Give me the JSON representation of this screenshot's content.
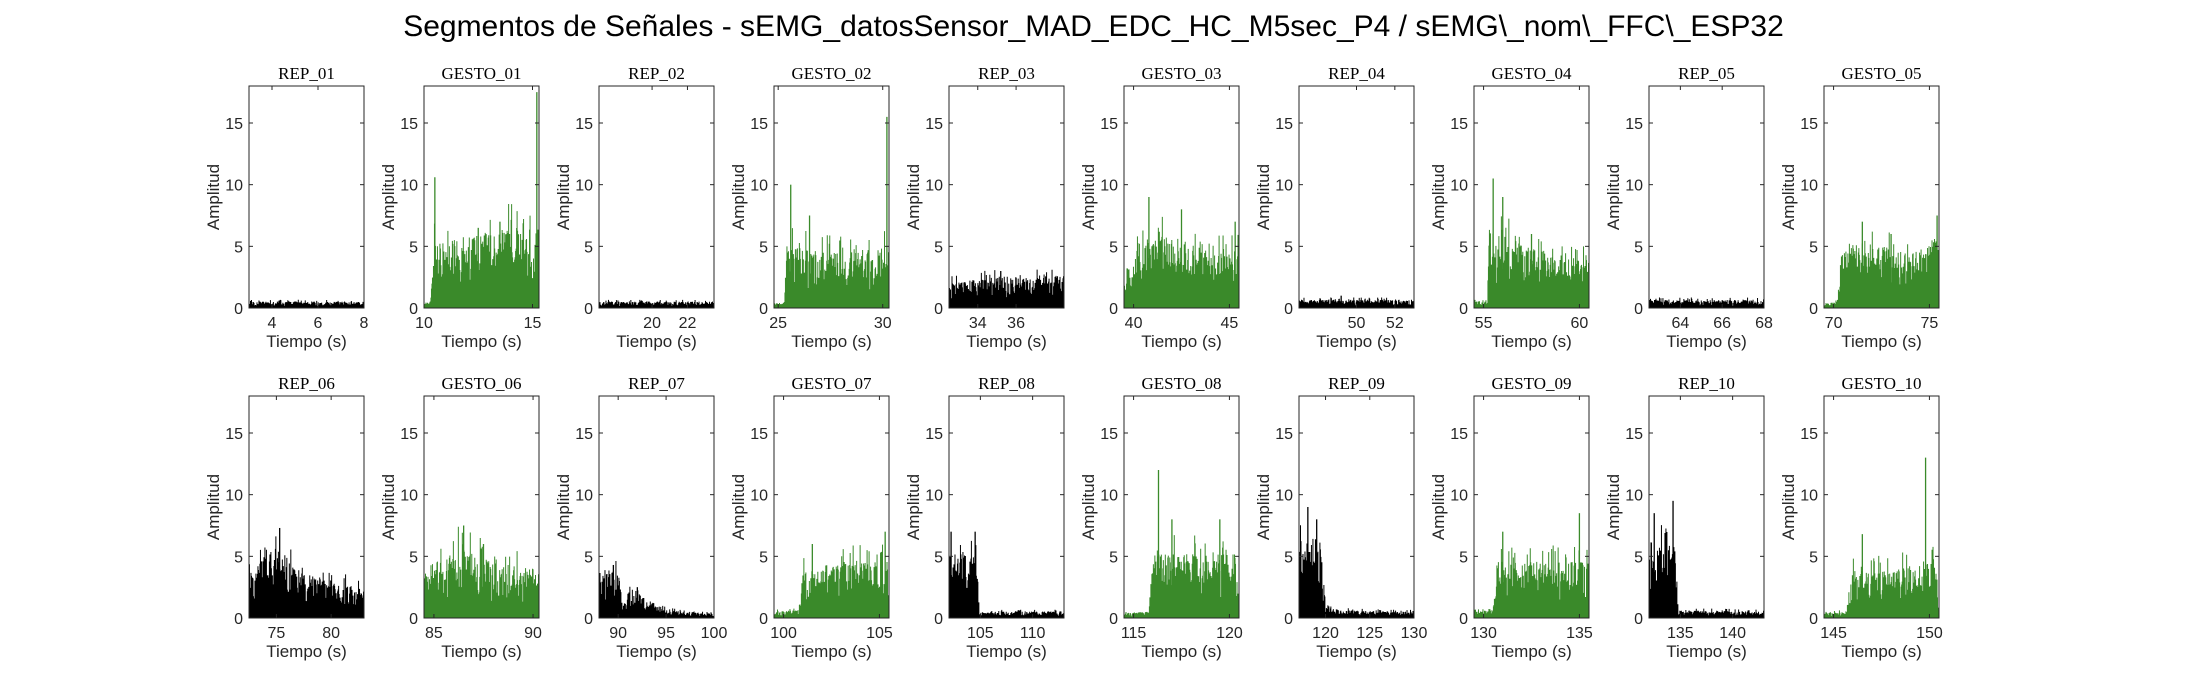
{
  "figure_title": "Segmentos de Señales - sEMG_datosSensor_MAD_EDC_HC_M5sec_P4 / sEMG\\_nom\\_FFC\\_ESP32",
  "colors": {
    "rep": "#000000",
    "gesto": "#3a8a2a",
    "axis": "#262626"
  },
  "chart_data": [
    {
      "type": "area",
      "title": "REP_01",
      "xlabel": "Tiempo (s)",
      "ylabel": "Amplitud",
      "xlim": [
        3,
        8
      ],
      "ylim": [
        0,
        18
      ],
      "xticks": [
        4,
        6,
        8
      ],
      "yticks": [
        0,
        5,
        10,
        15
      ],
      "color": "rep",
      "envelope": [
        {
          "x": 3,
          "y": 0.4
        },
        {
          "x": 8,
          "y": 0.4
        }
      ],
      "peaks": []
    },
    {
      "type": "area",
      "title": "GESTO_01",
      "xlabel": "Tiempo (s)",
      "ylabel": "Amplitud",
      "xlim": [
        10,
        15.3
      ],
      "ylim": [
        0,
        18
      ],
      "xticks": [
        10,
        15
      ],
      "yticks": [
        0,
        5,
        10,
        15
      ],
      "color": "gesto",
      "envelope": [
        {
          "x": 10,
          "y": 0.3
        },
        {
          "x": 10.3,
          "y": 0.5
        },
        {
          "x": 10.4,
          "y": 4
        },
        {
          "x": 12,
          "y": 4.5
        },
        {
          "x": 14,
          "y": 5
        },
        {
          "x": 15.3,
          "y": 5
        }
      ],
      "peaks": [
        {
          "x": 10.5,
          "y": 10.6
        },
        {
          "x": 12.5,
          "y": 6.5
        },
        {
          "x": 13.5,
          "y": 7
        },
        {
          "x": 15.2,
          "y": 17.5
        }
      ]
    },
    {
      "type": "area",
      "title": "REP_02",
      "xlabel": "Tiempo (s)",
      "ylabel": "Amplitud",
      "xlim": [
        17,
        23.5
      ],
      "ylim": [
        0,
        18
      ],
      "xticks": [
        20,
        22
      ],
      "yticks": [
        0,
        5,
        10,
        15
      ],
      "color": "rep",
      "envelope": [
        {
          "x": 17,
          "y": 0.4
        },
        {
          "x": 23.5,
          "y": 0.4
        }
      ],
      "peaks": []
    },
    {
      "type": "area",
      "title": "GESTO_02",
      "xlabel": "Tiempo (s)",
      "ylabel": "Amplitud",
      "xlim": [
        24.8,
        30.3
      ],
      "ylim": [
        0,
        18
      ],
      "xticks": [
        25,
        30
      ],
      "yticks": [
        0,
        5,
        10,
        15
      ],
      "color": "gesto",
      "envelope": [
        {
          "x": 24.8,
          "y": 0.3
        },
        {
          "x": 25.3,
          "y": 0.4
        },
        {
          "x": 25.4,
          "y": 4
        },
        {
          "x": 27,
          "y": 3.5
        },
        {
          "x": 29,
          "y": 3.5
        },
        {
          "x": 30.3,
          "y": 4
        }
      ],
      "peaks": [
        {
          "x": 25.6,
          "y": 10
        },
        {
          "x": 26.5,
          "y": 7.5
        },
        {
          "x": 30.2,
          "y": 15.5
        }
      ]
    },
    {
      "type": "area",
      "title": "REP_03",
      "xlabel": "Tiempo (s)",
      "ylabel": "Amplitud",
      "xlim": [
        32.5,
        38.5
      ],
      "ylim": [
        0,
        18
      ],
      "xticks": [
        34,
        36
      ],
      "yticks": [
        0,
        5,
        10,
        15
      ],
      "color": "rep",
      "envelope": [
        {
          "x": 32.5,
          "y": 1.5
        },
        {
          "x": 35,
          "y": 2
        },
        {
          "x": 38.5,
          "y": 2
        }
      ],
      "peaks": [
        {
          "x": 35.2,
          "y": 3
        }
      ]
    },
    {
      "type": "area",
      "title": "GESTO_03",
      "xlabel": "Tiempo (s)",
      "ylabel": "Amplitud",
      "xlim": [
        39.5,
        45.5
      ],
      "ylim": [
        0,
        18
      ],
      "xticks": [
        40,
        45
      ],
      "yticks": [
        0,
        5,
        10,
        15
      ],
      "color": "gesto",
      "envelope": [
        {
          "x": 39.5,
          "y": 1.5
        },
        {
          "x": 40.2,
          "y": 4
        },
        {
          "x": 42,
          "y": 4.5
        },
        {
          "x": 44,
          "y": 3.5
        },
        {
          "x": 45.5,
          "y": 3.5
        }
      ],
      "peaks": [
        {
          "x": 40.8,
          "y": 9
        },
        {
          "x": 42.5,
          "y": 8
        },
        {
          "x": 45.3,
          "y": 7
        }
      ]
    },
    {
      "type": "area",
      "title": "REP_04",
      "xlabel": "Tiempo (s)",
      "ylabel": "Amplitud",
      "xlim": [
        47,
        53
      ],
      "ylim": [
        0,
        18
      ],
      "xticks": [
        50,
        52
      ],
      "yticks": [
        0,
        5,
        10,
        15
      ],
      "color": "rep",
      "envelope": [
        {
          "x": 47,
          "y": 0.5
        },
        {
          "x": 53,
          "y": 0.5
        }
      ],
      "peaks": [
        {
          "x": 49.2,
          "y": 1
        }
      ]
    },
    {
      "type": "area",
      "title": "GESTO_04",
      "xlabel": "Tiempo (s)",
      "ylabel": "Amplitud",
      "xlim": [
        54.5,
        60.5
      ],
      "ylim": [
        0,
        18
      ],
      "xticks": [
        55,
        60
      ],
      "yticks": [
        0,
        5,
        10,
        15
      ],
      "color": "gesto",
      "envelope": [
        {
          "x": 54.5,
          "y": 0.4
        },
        {
          "x": 55.2,
          "y": 0.5
        },
        {
          "x": 55.3,
          "y": 5
        },
        {
          "x": 57,
          "y": 4
        },
        {
          "x": 59,
          "y": 3
        },
        {
          "x": 60.5,
          "y": 3
        }
      ],
      "peaks": [
        {
          "x": 55.5,
          "y": 10.5
        },
        {
          "x": 56,
          "y": 9
        },
        {
          "x": 57.5,
          "y": 6
        }
      ]
    },
    {
      "type": "area",
      "title": "REP_05",
      "xlabel": "Tiempo (s)",
      "ylabel": "Amplitud",
      "xlim": [
        62.5,
        68
      ],
      "ylim": [
        0,
        18
      ],
      "xticks": [
        64,
        66,
        68
      ],
      "yticks": [
        0,
        5,
        10,
        15
      ],
      "color": "rep",
      "envelope": [
        {
          "x": 62.5,
          "y": 0.5
        },
        {
          "x": 68,
          "y": 0.5
        }
      ],
      "peaks": []
    },
    {
      "type": "area",
      "title": "GESTO_05",
      "xlabel": "Tiempo (s)",
      "ylabel": "Amplitud",
      "xlim": [
        69.5,
        75.5
      ],
      "ylim": [
        0,
        18
      ],
      "xticks": [
        70,
        75
      ],
      "yticks": [
        0,
        5,
        10,
        15
      ],
      "color": "gesto",
      "envelope": [
        {
          "x": 69.5,
          "y": 0.3
        },
        {
          "x": 70.2,
          "y": 0.4
        },
        {
          "x": 70.4,
          "y": 3.5
        },
        {
          "x": 72,
          "y": 4
        },
        {
          "x": 74,
          "y": 3.5
        },
        {
          "x": 75.5,
          "y": 4.5
        }
      ],
      "peaks": [
        {
          "x": 71.5,
          "y": 7
        },
        {
          "x": 73,
          "y": 6
        },
        {
          "x": 75.4,
          "y": 7.5
        }
      ]
    },
    {
      "type": "area",
      "title": "REP_06",
      "xlabel": "Tiempo (s)",
      "ylabel": "Amplitud",
      "xlim": [
        72.5,
        83
      ],
      "ylim": [
        0,
        18
      ],
      "xticks": [
        75,
        80
      ],
      "yticks": [
        0,
        5,
        10,
        15
      ],
      "color": "rep",
      "envelope": [
        {
          "x": 72.5,
          "y": 3
        },
        {
          "x": 75,
          "y": 4.5
        },
        {
          "x": 77,
          "y": 3
        },
        {
          "x": 80,
          "y": 2.2
        },
        {
          "x": 83,
          "y": 2
        }
      ],
      "peaks": [
        {
          "x": 75.3,
          "y": 7.3
        }
      ]
    },
    {
      "type": "area",
      "title": "GESTO_06",
      "xlabel": "Tiempo (s)",
      "ylabel": "Amplitud",
      "xlim": [
        84.5,
        90.3
      ],
      "ylim": [
        0,
        18
      ],
      "xticks": [
        85,
        90
      ],
      "yticks": [
        0,
        5,
        10,
        15
      ],
      "color": "gesto",
      "envelope": [
        {
          "x": 84.5,
          "y": 3
        },
        {
          "x": 86,
          "y": 4.5
        },
        {
          "x": 88,
          "y": 3.5
        },
        {
          "x": 90.3,
          "y": 3
        }
      ],
      "peaks": [
        {
          "x": 86.5,
          "y": 7.5
        },
        {
          "x": 87.5,
          "y": 6
        }
      ]
    },
    {
      "type": "area",
      "title": "REP_07",
      "xlabel": "Tiempo (s)",
      "ylabel": "Amplitud",
      "xlim": [
        88,
        100
      ],
      "ylim": [
        0,
        18
      ],
      "xticks": [
        90,
        95,
        100
      ],
      "yticks": [
        0,
        5,
        10,
        15
      ],
      "color": "rep",
      "envelope": [
        {
          "x": 88,
          "y": 3
        },
        {
          "x": 90,
          "y": 3
        },
        {
          "x": 90.5,
          "y": 0.8
        },
        {
          "x": 91.5,
          "y": 1.8
        },
        {
          "x": 93,
          "y": 1.2
        },
        {
          "x": 95,
          "y": 0.5
        },
        {
          "x": 98.5,
          "y": 0.3
        }
      ],
      "peaks": [
        {
          "x": 89.5,
          "y": 4.3
        },
        {
          "x": 92,
          "y": 2.5
        }
      ]
    },
    {
      "type": "area",
      "title": "GESTO_07",
      "xlabel": "Tiempo (s)",
      "ylabel": "Amplitud",
      "xlim": [
        99.5,
        105.5
      ],
      "ylim": [
        0,
        18
      ],
      "xticks": [
        100,
        105
      ],
      "yticks": [
        0,
        5,
        10,
        15
      ],
      "color": "gesto",
      "envelope": [
        {
          "x": 99.5,
          "y": 0.4
        },
        {
          "x": 100.8,
          "y": 0.5
        },
        {
          "x": 101,
          "y": 3
        },
        {
          "x": 103,
          "y": 3.5
        },
        {
          "x": 105.5,
          "y": 3.5
        }
      ],
      "peaks": [
        {
          "x": 101.5,
          "y": 6
        },
        {
          "x": 105.3,
          "y": 7
        }
      ]
    },
    {
      "type": "area",
      "title": "REP_08",
      "xlabel": "Tiempo (s)",
      "ylabel": "Amplitud",
      "xlim": [
        102,
        113
      ],
      "ylim": [
        0,
        18
      ],
      "xticks": [
        105,
        110
      ],
      "yticks": [
        0,
        5,
        10,
        15
      ],
      "color": "rep",
      "envelope": [
        {
          "x": 102,
          "y": 4
        },
        {
          "x": 104.7,
          "y": 4
        },
        {
          "x": 104.9,
          "y": 0.4
        },
        {
          "x": 113,
          "y": 0.4
        }
      ],
      "peaks": [
        {
          "x": 102.2,
          "y": 7
        },
        {
          "x": 104.5,
          "y": 7
        }
      ]
    },
    {
      "type": "area",
      "title": "GESTO_08",
      "xlabel": "Tiempo (s)",
      "ylabel": "Amplitud",
      "xlim": [
        114.5,
        120.5
      ],
      "ylim": [
        0,
        18
      ],
      "xticks": [
        115,
        120
      ],
      "yticks": [
        0,
        5,
        10,
        15
      ],
      "color": "gesto",
      "envelope": [
        {
          "x": 114.5,
          "y": 0.3
        },
        {
          "x": 115.8,
          "y": 0.4
        },
        {
          "x": 116,
          "y": 4
        },
        {
          "x": 118,
          "y": 4
        },
        {
          "x": 120.3,
          "y": 4
        },
        {
          "x": 120.5,
          "y": 0.5
        }
      ],
      "peaks": [
        {
          "x": 116.3,
          "y": 12
        },
        {
          "x": 117,
          "y": 8
        },
        {
          "x": 119.5,
          "y": 8
        }
      ]
    },
    {
      "type": "area",
      "title": "REP_09",
      "xlabel": "Tiempo (s)",
      "ylabel": "Amplitud",
      "xlim": [
        117,
        130
      ],
      "ylim": [
        0,
        18
      ],
      "xticks": [
        120,
        125,
        130
      ],
      "yticks": [
        0,
        5,
        10,
        15
      ],
      "color": "rep",
      "envelope": [
        {
          "x": 117,
          "y": 5
        },
        {
          "x": 119.5,
          "y": 5
        },
        {
          "x": 120,
          "y": 1
        },
        {
          "x": 121,
          "y": 0.5
        },
        {
          "x": 128,
          "y": 0.4
        }
      ],
      "peaks": [
        {
          "x": 118,
          "y": 9
        },
        {
          "x": 119,
          "y": 8
        }
      ]
    },
    {
      "type": "area",
      "title": "GESTO_09",
      "xlabel": "Tiempo (s)",
      "ylabel": "Amplitud",
      "xlim": [
        129.5,
        135.5
      ],
      "ylim": [
        0,
        18
      ],
      "xticks": [
        130,
        135
      ],
      "yticks": [
        0,
        5,
        10,
        15
      ],
      "color": "gesto",
      "envelope": [
        {
          "x": 129.5,
          "y": 0.4
        },
        {
          "x": 130.5,
          "y": 0.5
        },
        {
          "x": 130.7,
          "y": 3.5
        },
        {
          "x": 133,
          "y": 3.5
        },
        {
          "x": 135.5,
          "y": 3.5
        }
      ],
      "peaks": [
        {
          "x": 131,
          "y": 7
        },
        {
          "x": 135,
          "y": 8.5
        }
      ]
    },
    {
      "type": "area",
      "title": "REP_10",
      "xlabel": "Tiempo (s)",
      "ylabel": "Amplitud",
      "xlim": [
        132,
        143
      ],
      "ylim": [
        0,
        18
      ],
      "xticks": [
        135,
        140
      ],
      "yticks": [
        0,
        5,
        10,
        15
      ],
      "color": "rep",
      "envelope": [
        {
          "x": 132,
          "y": 4.5
        },
        {
          "x": 134.5,
          "y": 4.5
        },
        {
          "x": 134.8,
          "y": 0.5
        },
        {
          "x": 143,
          "y": 0.4
        }
      ],
      "peaks": [
        {
          "x": 132.5,
          "y": 8.5
        },
        {
          "x": 134.3,
          "y": 9.5
        }
      ]
    },
    {
      "type": "area",
      "title": "GESTO_10",
      "xlabel": "Tiempo (s)",
      "ylabel": "Amplitud",
      "xlim": [
        144.5,
        150.5
      ],
      "ylim": [
        0,
        18
      ],
      "xticks": [
        145,
        150
      ],
      "yticks": [
        0,
        5,
        10,
        15
      ],
      "color": "gesto",
      "envelope": [
        {
          "x": 144.5,
          "y": 0.3
        },
        {
          "x": 145.7,
          "y": 0.4
        },
        {
          "x": 145.9,
          "y": 3
        },
        {
          "x": 148,
          "y": 3
        },
        {
          "x": 150.3,
          "y": 3.5
        },
        {
          "x": 150.5,
          "y": 0.5
        }
      ],
      "peaks": [
        {
          "x": 146.5,
          "y": 6.8
        },
        {
          "x": 149.8,
          "y": 13
        }
      ]
    }
  ]
}
